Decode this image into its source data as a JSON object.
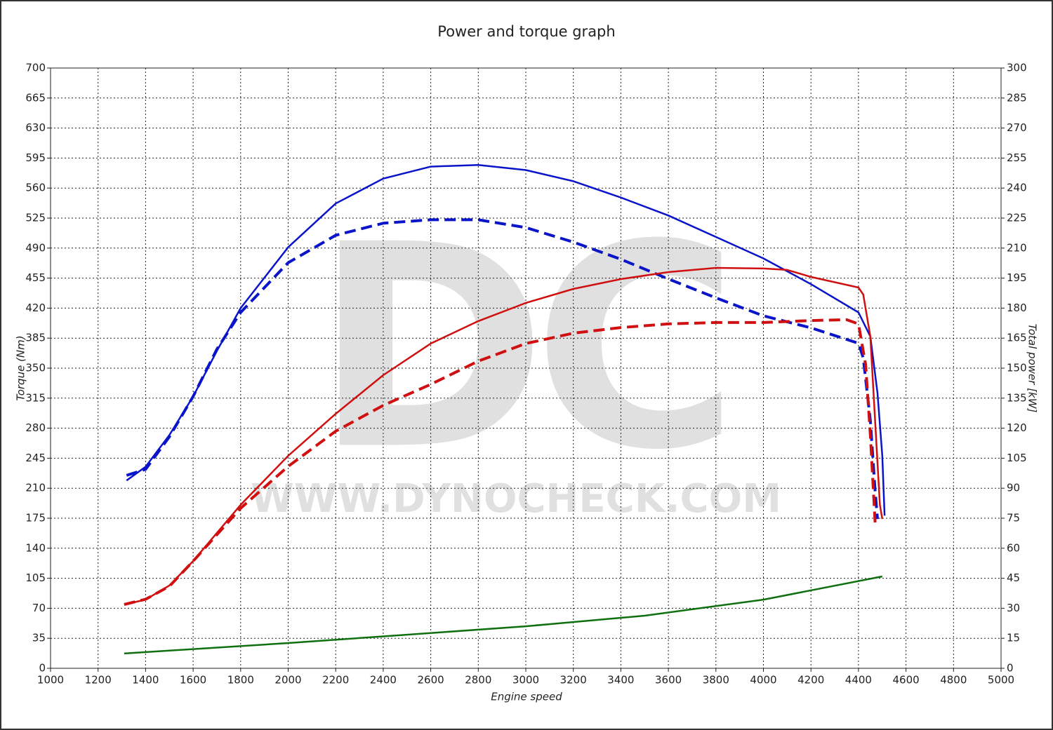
{
  "chart_data": {
    "type": "line",
    "title": "Power and torque graph",
    "x_label": "Engine speed",
    "y_label": "Torque (Nm)",
    "y2_label": "Total power [kW]",
    "watermark": [
      "DC",
      "WWW.DYNOCHECK.COM"
    ],
    "grid": true,
    "xlim": [
      1000,
      5000
    ],
    "xticks": [
      1000,
      1200,
      1400,
      1600,
      1800,
      2000,
      2200,
      2400,
      2600,
      2800,
      3000,
      3200,
      3400,
      3600,
      3800,
      4000,
      4200,
      4400,
      4600,
      4800,
      5000
    ],
    "ylim": [
      0,
      700
    ],
    "yticks": [
      0,
      35,
      70,
      105,
      140,
      175,
      210,
      245,
      280,
      315,
      350,
      385,
      420,
      455,
      490,
      525,
      560,
      595,
      630,
      665,
      700
    ],
    "y2lim": [
      0,
      300
    ],
    "y2ticks": [
      0,
      15,
      30,
      45,
      60,
      75,
      90,
      105,
      120,
      135,
      150,
      165,
      180,
      195,
      210,
      225,
      240,
      255,
      270,
      285,
      300
    ],
    "series": [
      {
        "color": "#0a14c8",
        "dash": false,
        "axis": "y",
        "x": [
          1320,
          1400,
          1500,
          1600,
          1700,
          1800,
          2000,
          2200,
          2400,
          2600,
          2800,
          3000,
          3200,
          3400,
          3600,
          3800,
          4000,
          4200,
          4400,
          4450,
          4480,
          4500,
          4510
        ],
        "values": [
          219,
          235,
          272,
          317,
          370,
          420,
          491,
          542,
          571,
          585,
          587,
          581,
          568,
          549,
          528,
          503,
          478,
          448,
          415,
          387,
          321,
          248,
          178
        ]
      },
      {
        "color": "#0a14c8",
        "dash": true,
        "axis": "y",
        "x": [
          1320,
          1400,
          1500,
          1600,
          1700,
          1800,
          1900,
          2000,
          2200,
          2400,
          2600,
          2800,
          3000,
          3200,
          3400,
          3600,
          3800,
          4000,
          4200,
          4400,
          4420,
          4450,
          4470,
          4480
        ],
        "values": [
          225,
          232,
          270,
          317,
          372,
          415,
          444,
          473,
          505,
          519,
          523,
          523,
          514,
          497,
          477,
          454,
          432,
          411,
          397,
          379,
          362,
          289,
          207,
          174
        ]
      },
      {
        "color": "#d01010",
        "dash": false,
        "axis": "y2",
        "x": [
          1310,
          1400,
          1500,
          1600,
          1800,
          2000,
          2200,
          2400,
          2600,
          2800,
          3000,
          3200,
          3400,
          3600,
          3800,
          4000,
          4100,
          4200,
          4400,
          4420,
          4450,
          4470,
          4490,
          4500
        ],
        "values": [
          31.9,
          34.3,
          41.4,
          53.6,
          81.7,
          106.2,
          127.2,
          146.5,
          162.3,
          173.5,
          182.6,
          189.6,
          194.5,
          198,
          200.1,
          199.8,
          199.1,
          195.6,
          190.3,
          186.8,
          165.8,
          123.7,
          81.7,
          74.6
        ]
      },
      {
        "color": "#d01010",
        "dash": true,
        "axis": "y2",
        "x": [
          1310,
          1400,
          1500,
          1600,
          1800,
          2000,
          2200,
          2400,
          2600,
          2800,
          3000,
          3200,
          3400,
          3600,
          3800,
          4000,
          4200,
          4350,
          4400,
          4430,
          4450,
          4470
        ],
        "values": [
          31.9,
          34.5,
          41,
          53.5,
          80,
          100.9,
          118.5,
          131.4,
          141.9,
          153.5,
          162.3,
          167.5,
          170.3,
          172.1,
          172.8,
          172.8,
          173.8,
          174.2,
          172.1,
          151.8,
          116.7,
          72.9
        ]
      },
      {
        "color": "#107010",
        "dash": false,
        "axis": "y2",
        "x": [
          1310,
          2000,
          2500,
          3000,
          3500,
          4000,
          4500
        ],
        "values": [
          7.4,
          12.6,
          16.8,
          21,
          26.3,
          34.3,
          45.9
        ]
      }
    ]
  }
}
